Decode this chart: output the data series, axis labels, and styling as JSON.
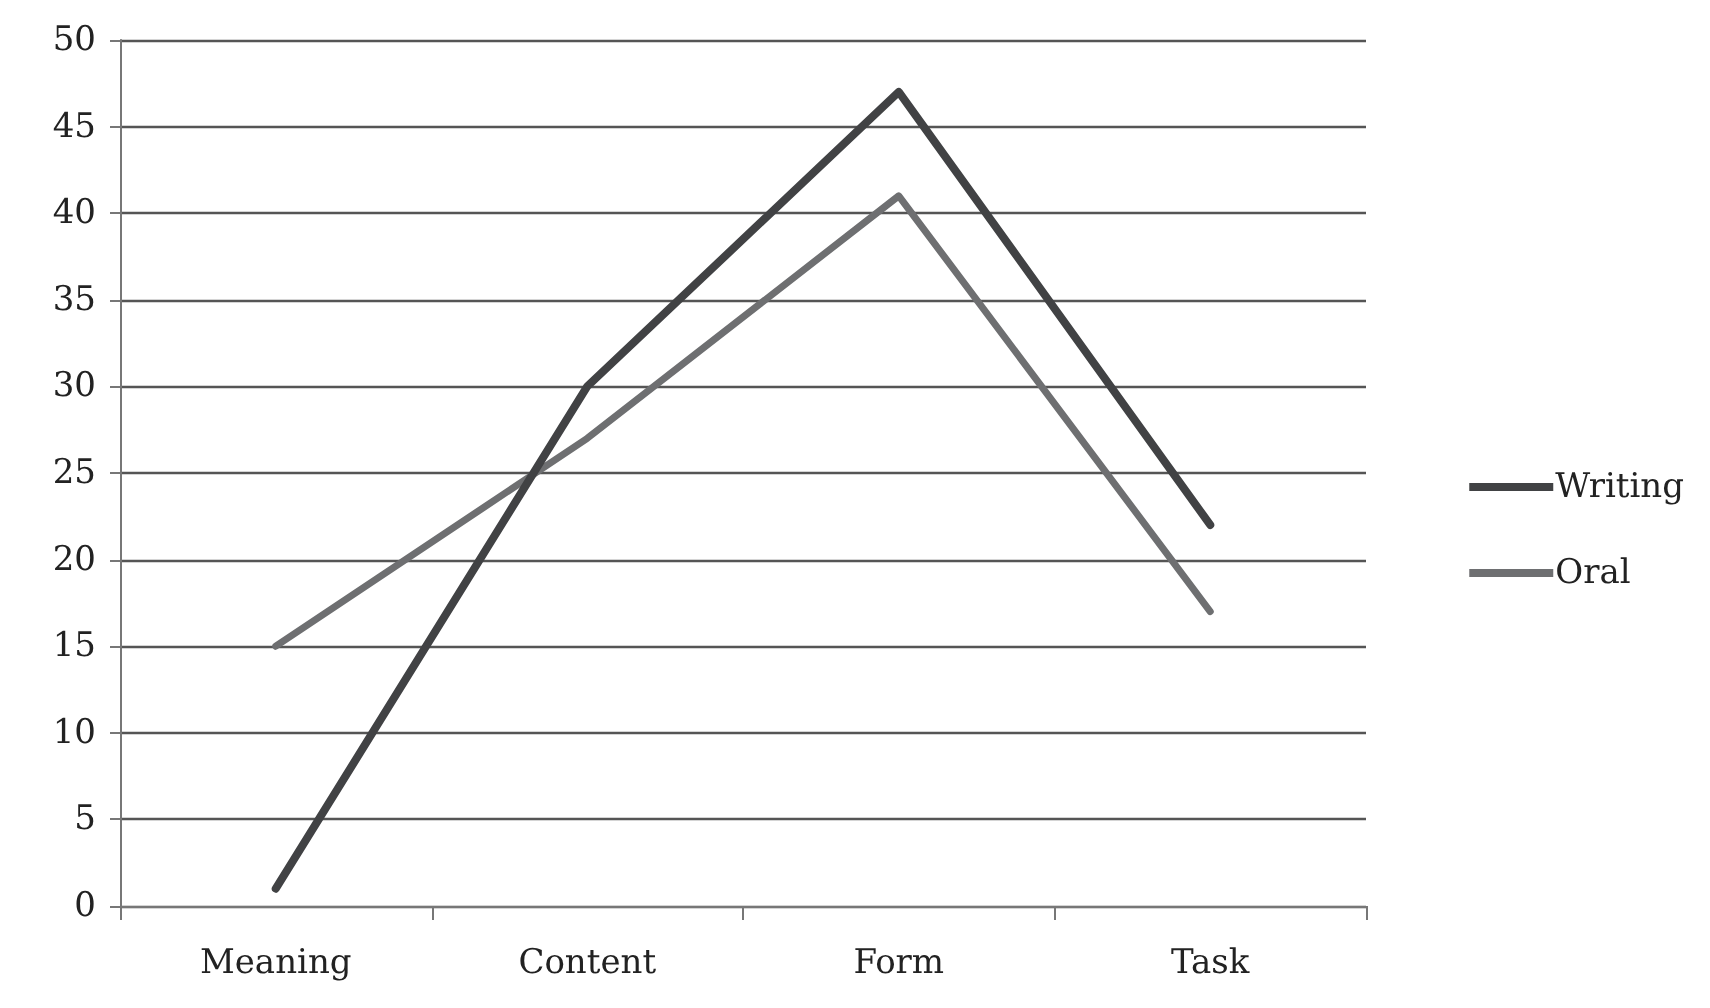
{
  "chart_data": {
    "type": "line",
    "categories": [
      "Meaning",
      "Content",
      "Form",
      "Task"
    ],
    "series": [
      {
        "name": "Writing",
        "color": "#414244",
        "values": [
          1,
          30,
          47,
          22
        ]
      },
      {
        "name": "Oral",
        "color": "#6e6f71",
        "values": [
          15,
          27,
          41,
          17
        ]
      }
    ],
    "ylim": [
      0,
      50
    ],
    "yticks": [
      0,
      5,
      10,
      15,
      20,
      25,
      30,
      35,
      40,
      45,
      50
    ],
    "grid": "y",
    "legend": "right",
    "marker": "none",
    "line_style": "solid"
  }
}
